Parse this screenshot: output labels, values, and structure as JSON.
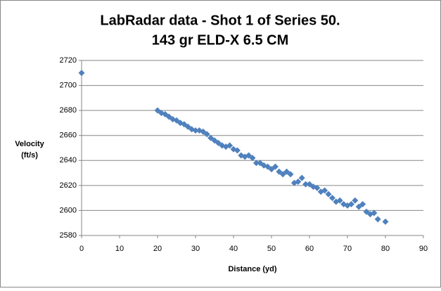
{
  "chart_data": {
    "type": "scatter",
    "title": "LabRadar data - Shot 1 of Series 50.",
    "subtitle": "143 gr ELD-X 6.5 CM",
    "xlabel": "Distance  (yd)",
    "ylabel": [
      "Velocity",
      "(ft/s)"
    ],
    "color": "#4f81bd",
    "grid": true,
    "x": [
      0,
      20,
      21,
      22,
      23,
      24,
      25,
      26,
      27,
      28,
      29,
      30,
      31,
      32,
      33,
      34,
      35,
      36,
      37,
      38,
      39,
      40,
      41,
      42,
      43,
      44,
      45,
      46,
      47,
      48,
      49,
      50,
      51,
      52,
      53,
      54,
      55,
      56,
      57,
      58,
      59,
      60,
      61,
      62,
      63,
      64,
      65,
      66,
      67,
      68,
      69,
      70,
      71,
      72,
      73,
      74,
      75,
      76,
      77,
      78,
      80
    ],
    "values": [
      2710,
      2680,
      2678,
      2677,
      2675,
      2673,
      2672,
      2670,
      2669,
      2667,
      2665,
      2664,
      2664,
      2663,
      2661,
      2658,
      2656,
      2654,
      2652,
      2651,
      2652,
      2649,
      2648,
      2644,
      2643,
      2644,
      2642,
      2638,
      2638,
      2636,
      2635,
      2633,
      2635,
      2631,
      2629,
      2631,
      2629,
      2622,
      2623,
      2626,
      2621,
      2621,
      2619,
      2618,
      2615,
      2616,
      2613,
      2610,
      2607,
      2608,
      2605,
      2604,
      2605,
      2608,
      2603,
      2605,
      2599,
      2597,
      2598,
      2593,
      2591
    ],
    "xlim": [
      0,
      90
    ],
    "xticks": [
      0,
      10,
      20,
      30,
      40,
      50,
      60,
      70,
      80,
      90
    ],
    "ylim": [
      2580,
      2720
    ],
    "yticks": [
      2580,
      2600,
      2620,
      2640,
      2660,
      2680,
      2700,
      2720
    ]
  }
}
